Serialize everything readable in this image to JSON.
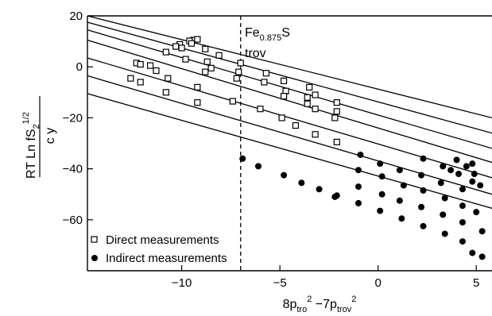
{
  "chart_data": {
    "type": "scatter",
    "xlim": [
      -14.8,
      5.8
    ],
    "ylim": [
      -80,
      20
    ],
    "x_ticks": [
      -10,
      -5,
      0,
      5
    ],
    "y_ticks": [
      20,
      0,
      -20,
      -40,
      -60
    ],
    "x_tick_labels": [
      "−10",
      "−5",
      "0",
      "5"
    ],
    "y_tick_labels": [
      "20",
      "0",
      "−20",
      "−40",
      "−60"
    ],
    "grid": false,
    "legend_position": "bottom-left",
    "xlabel": {
      "a": "8p",
      "a_sub": "tro",
      "a_sup": "2",
      "b": " −7p",
      "b_sub": "trov",
      "b_sup": "2"
    },
    "ylabel": {
      "line1": "RT",
      "line2": " Ln fS",
      "line2_sub": "2",
      "line2_sup": "1/2",
      "denom": "c y"
    },
    "annotation": {
      "main": "Fe",
      "main_sub": "0.875",
      "main_tail": "S",
      "second": "trov",
      "x": -7
    },
    "fit_lines": [
      {
        "x": [
          -14.8,
          5.8
        ],
        "y": [
          20.0,
          -20.0
        ]
      },
      {
        "x": [
          -14.8,
          5.8
        ],
        "y": [
          17.5,
          -26.0
        ]
      },
      {
        "x": [
          -14.8,
          5.8
        ],
        "y": [
          14.5,
          -32.0
        ]
      },
      {
        "x": [
          -14.8,
          5.8
        ],
        "y": [
          10.5,
          -37.5
        ]
      },
      {
        "x": [
          -14.8,
          5.8
        ],
        "y": [
          3.5,
          -43.5
        ]
      },
      {
        "x": [
          -14.8,
          5.8
        ],
        "y": [
          -3.5,
          -50.0
        ]
      },
      {
        "x": [
          -14.8,
          5.8
        ],
        "y": [
          -10.5,
          -55.5
        ]
      }
    ],
    "series": [
      {
        "name": "Direct measurements",
        "marker": "square",
        "points": [
          [
            -9.4,
            10.5
          ],
          [
            -9.6,
            10.2
          ],
          [
            -9.2,
            10.8
          ],
          [
            -10.1,
            8.8
          ],
          [
            -10.3,
            8.0
          ],
          [
            -10.0,
            7.4
          ],
          [
            -9.5,
            9.2
          ],
          [
            -8.8,
            7.0
          ],
          [
            -8.1,
            4.5
          ],
          [
            -10.8,
            5.8
          ],
          [
            -9.8,
            3.0
          ],
          [
            -7.0,
            1.5
          ],
          [
            -5.7,
            -2.5
          ],
          [
            -4.8,
            -5.5
          ],
          [
            -3.5,
            -8.0
          ],
          [
            -3.2,
            -11.0
          ],
          [
            -3.6,
            -12.0
          ],
          [
            -2.1,
            -14.0
          ],
          [
            -8.7,
            2.0
          ],
          [
            -8.5,
            -0.5
          ],
          [
            -7.1,
            -2.0
          ],
          [
            -7.2,
            -4.5
          ],
          [
            -5.8,
            -6.0
          ],
          [
            -4.7,
            -9.5
          ],
          [
            -4.8,
            -11.5
          ],
          [
            -3.6,
            -14.5
          ],
          [
            -2.1,
            -17.5
          ],
          [
            -2.2,
            -20.0
          ],
          [
            -3.2,
            -16.5
          ],
          [
            -12.3,
            1.5
          ],
          [
            -12.1,
            1.0
          ],
          [
            -11.6,
            0.5
          ],
          [
            -11.3,
            -1.5
          ],
          [
            -10.7,
            -4.5
          ],
          [
            -9.2,
            -8.0
          ],
          [
            -7.4,
            -13.5
          ],
          [
            -6.0,
            -16.5
          ],
          [
            -4.2,
            -23.0
          ],
          [
            -2.1,
            -29.5
          ],
          [
            -3.2,
            -26.5
          ],
          [
            -4.9,
            -20.0
          ],
          [
            -12.6,
            -4.5
          ],
          [
            -12.1,
            -6.0
          ],
          [
            -10.8,
            -10.0
          ],
          [
            -9.2,
            -14.0
          ],
          [
            -8.8,
            -2.0
          ]
        ]
      },
      {
        "name": "Indirect measurements",
        "marker": "circle",
        "points": [
          [
            -6.9,
            -36.0
          ],
          [
            -6.1,
            -39.0
          ],
          [
            -4.8,
            -42.5
          ],
          [
            -3.9,
            -45.5
          ],
          [
            -3.0,
            -48.0
          ],
          [
            -2.1,
            -50.5
          ],
          [
            -1.0,
            -53.5
          ],
          [
            0.1,
            -56.5
          ],
          [
            1.2,
            -59.5
          ],
          [
            2.3,
            -62.5
          ],
          [
            3.4,
            -65.5
          ],
          [
            4.3,
            -68.5
          ],
          [
            4.8,
            -73.0
          ],
          [
            5.3,
            -74.5
          ],
          [
            -2.2,
            -51.0
          ],
          [
            -1.0,
            -47.0
          ],
          [
            0.2,
            -50.0
          ],
          [
            1.1,
            -52.5
          ],
          [
            2.2,
            -55.0
          ],
          [
            3.3,
            -58.0
          ],
          [
            4.3,
            -61.0
          ],
          [
            5.3,
            -64.5
          ],
          [
            -1.0,
            -40.5
          ],
          [
            0.2,
            -43.0
          ],
          [
            1.3,
            -46.5
          ],
          [
            2.3,
            -48.5
          ],
          [
            3.4,
            -51.5
          ],
          [
            4.3,
            -54.5
          ],
          [
            5.0,
            -57.0
          ],
          [
            -0.9,
            -34.5
          ],
          [
            0.1,
            -38.0
          ],
          [
            1.1,
            -40.5
          ],
          [
            2.2,
            -42.5
          ],
          [
            3.2,
            -45.5
          ],
          [
            4.3,
            -48.0
          ],
          [
            4.8,
            -45.0
          ],
          [
            2.3,
            -36.0
          ],
          [
            3.3,
            -39.0
          ],
          [
            4.1,
            -42.0
          ],
          [
            3.7,
            -40.5
          ],
          [
            4.0,
            -36.5
          ],
          [
            4.8,
            -38.0
          ],
          [
            5.2,
            -46.5
          ],
          [
            4.5,
            -39.0
          ],
          [
            4.9,
            -42.0
          ]
        ]
      }
    ]
  }
}
